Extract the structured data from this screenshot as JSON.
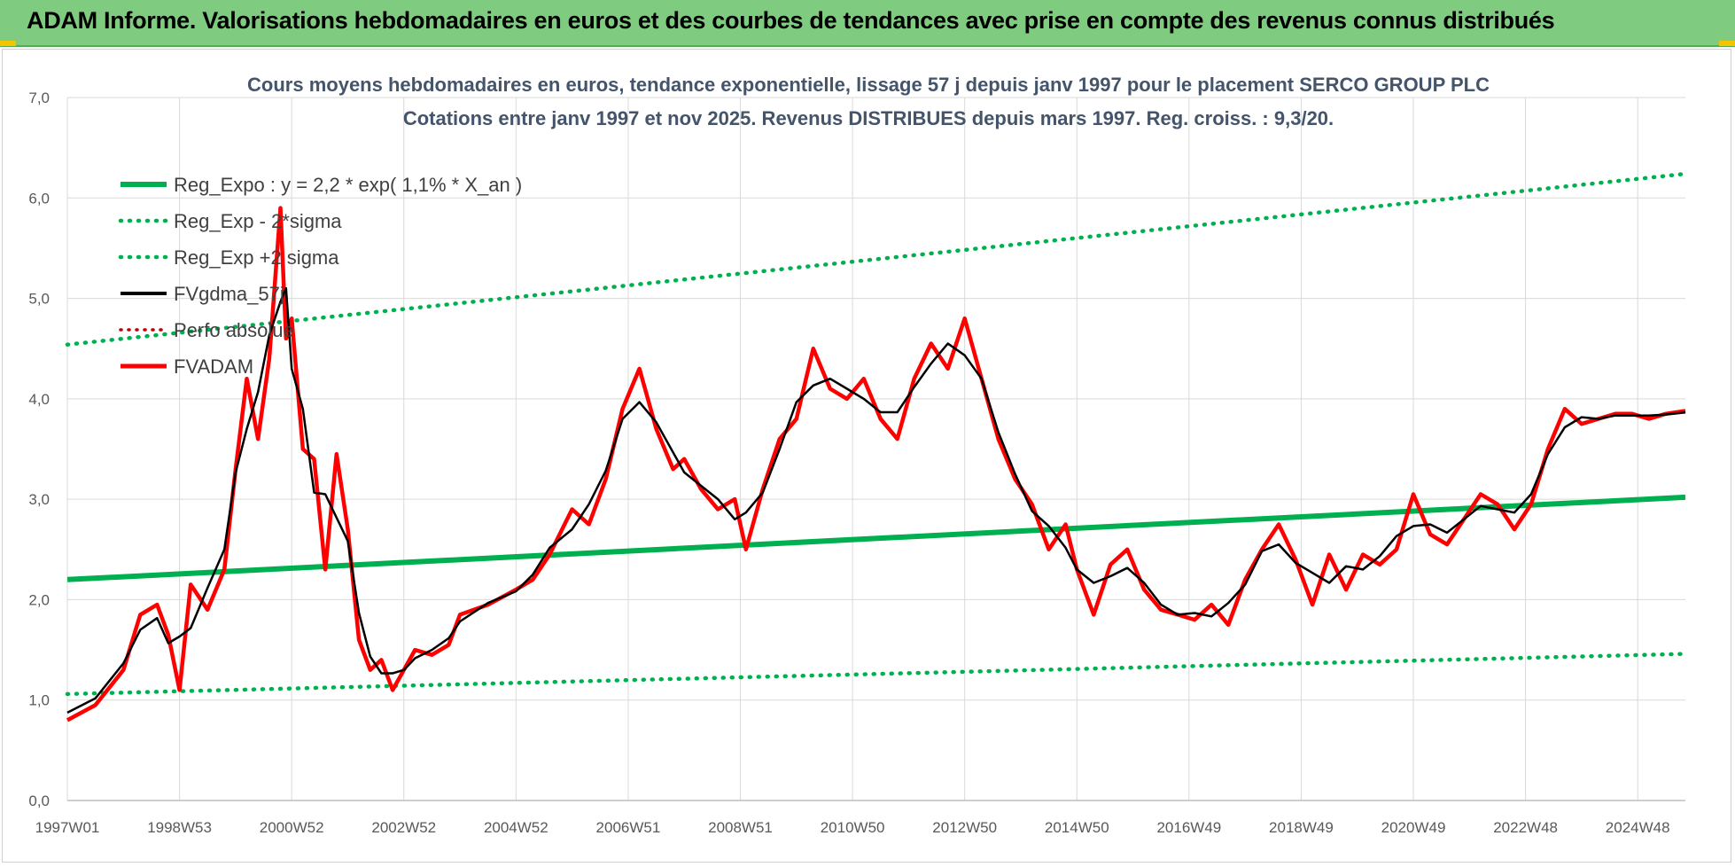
{
  "header": {
    "title": "ADAM Informe. Valorisations hebdomadaires en euros et des courbes de tendances avec prise en compte des revenus connus distribués"
  },
  "colors": {
    "banner": "#7fcb7f",
    "regression": "#00b050",
    "fvgdma": "#000000",
    "fvadam": "#ff0000",
    "perfo": "#c00000"
  },
  "chart_data": {
    "type": "line",
    "title_lines": [
      "Cours moyens hebdomadaires en euros, tendance exponentielle, lissage 57 j depuis janv 1997 pour le placement SERCO GROUP PLC",
      "Cotations entre janv 1997 et nov 2025. Revenus DISTRIBUES depuis mars 1997.  Reg. croiss. : 9,3/20."
    ],
    "ylim": [
      0,
      7
    ],
    "yticks": [
      "0,0",
      "1,0",
      "2,0",
      "3,0",
      "4,0",
      "5,0",
      "6,0",
      "7,0"
    ],
    "xlim": [
      1997.0,
      2025.85
    ],
    "xticks": [
      {
        "label": "1997W01",
        "x": 1997.0
      },
      {
        "label": "1998W53",
        "x": 1999.0
      },
      {
        "label": "2000W52",
        "x": 2001.0
      },
      {
        "label": "2002W52",
        "x": 2003.0
      },
      {
        "label": "2004W52",
        "x": 2005.0
      },
      {
        "label": "2006W51",
        "x": 2007.0
      },
      {
        "label": "2008W51",
        "x": 2009.0
      },
      {
        "label": "2010W50",
        "x": 2011.0
      },
      {
        "label": "2012W50",
        "x": 2013.0
      },
      {
        "label": "2014W50",
        "x": 2015.0
      },
      {
        "label": "2016W49",
        "x": 2017.0
      },
      {
        "label": "2018W49",
        "x": 2019.0
      },
      {
        "label": "2020W49",
        "x": 2021.0
      },
      {
        "label": "2022W48",
        "x": 2023.0
      },
      {
        "label": "2024W48",
        "x": 2025.0
      }
    ],
    "legend": [
      {
        "label": "Reg_Expo : y = 2,2 * exp( 1,1% *  X_an )",
        "style": "solid-green"
      },
      {
        "label": "Reg_Exp - 2*sigma",
        "style": "dotted-green"
      },
      {
        "label": "Reg_Exp +2 sigma",
        "style": "dotted-green"
      },
      {
        "label": "FVgdma_57j",
        "style": "solid-black"
      },
      {
        "label": "Perfo absolue",
        "style": "dotted-red"
      },
      {
        "label": "FVADAM",
        "style": "solid-red"
      }
    ],
    "series": [
      {
        "name": "Reg_Expo : y = 2,2 * exp( 1,1% *  X_an )",
        "x": [
          1997.0,
          2025.85
        ],
        "values": [
          2.2,
          3.02
        ]
      },
      {
        "name": "Reg_Exp - 2*sigma",
        "x": [
          1997.0,
          2025.85
        ],
        "values": [
          1.06,
          1.46
        ]
      },
      {
        "name": "Reg_Exp +2 sigma",
        "x": [
          1997.0,
          2025.85
        ],
        "values": [
          4.54,
          6.24
        ]
      },
      {
        "name": "FVADAM",
        "x": [
          1997.0,
          1997.5,
          1998.0,
          1998.3,
          1998.6,
          1998.8,
          1999.0,
          1999.2,
          1999.5,
          1999.8,
          2000.0,
          2000.2,
          2000.4,
          2000.6,
          2000.8,
          2000.9,
          2001.0,
          2001.2,
          2001.4,
          2001.6,
          2001.8,
          2002.0,
          2002.2,
          2002.4,
          2002.6,
          2002.8,
          2003.0,
          2003.2,
          2003.5,
          2003.8,
          2004.0,
          2004.5,
          2005.0,
          2005.3,
          2005.6,
          2006.0,
          2006.3,
          2006.6,
          2006.9,
          2007.2,
          2007.5,
          2007.8,
          2008.0,
          2008.3,
          2008.6,
          2008.9,
          2009.1,
          2009.4,
          2009.7,
          2010.0,
          2010.3,
          2010.6,
          2010.9,
          2011.2,
          2011.5,
          2011.8,
          2012.1,
          2012.4,
          2012.7,
          2013.0,
          2013.3,
          2013.6,
          2013.9,
          2014.2,
          2014.5,
          2014.8,
          2015.0,
          2015.3,
          2015.6,
          2015.9,
          2016.2,
          2016.5,
          2016.8,
          2017.1,
          2017.4,
          2017.7,
          2018.0,
          2018.3,
          2018.6,
          2018.9,
          2019.2,
          2019.5,
          2019.8,
          2020.1,
          2020.4,
          2020.7,
          2021.0,
          2021.3,
          2021.6,
          2021.9,
          2022.2,
          2022.5,
          2022.8,
          2023.1,
          2023.4,
          2023.7,
          2024.0,
          2024.3,
          2024.6,
          2024.9,
          2025.2,
          2025.5,
          2025.85
        ],
        "values": [
          0.8,
          0.95,
          1.3,
          1.85,
          1.95,
          1.65,
          1.1,
          2.15,
          1.9,
          2.3,
          3.3,
          4.2,
          3.6,
          4.4,
          5.9,
          4.6,
          4.8,
          3.5,
          3.4,
          2.3,
          3.45,
          2.7,
          1.6,
          1.3,
          1.4,
          1.1,
          1.3,
          1.5,
          1.45,
          1.55,
          1.85,
          1.95,
          2.1,
          2.2,
          2.45,
          2.9,
          2.75,
          3.2,
          3.9,
          4.3,
          3.7,
          3.3,
          3.4,
          3.1,
          2.9,
          3.0,
          2.5,
          3.1,
          3.6,
          3.8,
          4.5,
          4.1,
          4.0,
          4.2,
          3.8,
          3.6,
          4.2,
          4.55,
          4.3,
          4.8,
          4.2,
          3.6,
          3.2,
          2.95,
          2.5,
          2.75,
          2.3,
          1.85,
          2.35,
          2.5,
          2.1,
          1.9,
          1.85,
          1.8,
          1.95,
          1.75,
          2.2,
          2.5,
          2.75,
          2.4,
          1.95,
          2.45,
          2.1,
          2.45,
          2.35,
          2.5,
          3.05,
          2.65,
          2.55,
          2.8,
          3.05,
          2.95,
          2.7,
          2.95,
          3.5,
          3.9,
          3.75,
          3.8,
          3.85,
          3.85,
          3.8,
          3.85,
          3.88
        ]
      }
    ]
  }
}
